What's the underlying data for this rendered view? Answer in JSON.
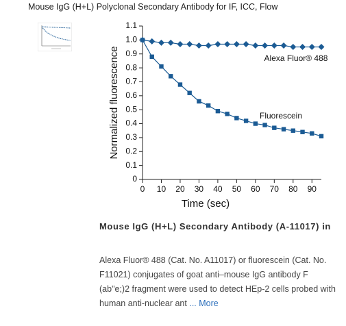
{
  "header": {
    "title": "Mouse IgG (H+L) Polyclonal Secondary Antibody for IF, ICC, Flow"
  },
  "chart_data": {
    "type": "line",
    "x_label": "Time (sec)",
    "y_label": "Normalized fluorescence",
    "x": [
      0,
      5,
      10,
      15,
      20,
      25,
      30,
      35,
      40,
      45,
      50,
      55,
      60,
      65,
      70,
      75,
      80,
      85,
      90,
      95
    ],
    "series": [
      {
        "name": "Alexa Fluor® 488",
        "color": "#1b5b94",
        "marker": "diamond",
        "values": [
          1.0,
          0.99,
          0.98,
          0.98,
          0.97,
          0.97,
          0.96,
          0.96,
          0.97,
          0.97,
          0.97,
          0.97,
          0.96,
          0.96,
          0.96,
          0.96,
          0.95,
          0.95,
          0.95,
          0.95
        ]
      },
      {
        "name": "Fluorescein",
        "color": "#1b5b94",
        "marker": "square",
        "values": [
          1.0,
          0.88,
          0.81,
          0.74,
          0.68,
          0.62,
          0.56,
          0.53,
          0.49,
          0.47,
          0.44,
          0.42,
          0.4,
          0.39,
          0.37,
          0.36,
          0.35,
          0.34,
          0.33,
          0.31
        ]
      }
    ],
    "xlim": [
      0,
      95
    ],
    "xticks": [
      0,
      10,
      20,
      30,
      40,
      50,
      60,
      70,
      80,
      90
    ],
    "ylim": [
      0,
      1.1
    ],
    "yticks": [
      0,
      0.1,
      0.2,
      0.3,
      0.4,
      0.5,
      0.6,
      0.7,
      0.8,
      0.9,
      {
        "value": 1,
        "label": "1.0"
      },
      1.1
    ]
  },
  "caption": {
    "title": "Mouse IgG (H+L) Secondary Antibody (A-11017) in",
    "text": "Alexa Fluor® 488 (Cat. No. A11017) or fluorescein (Cat. No. F11021) conjugates of goat anti–mouse IgG antibody F (ab\"e;)2 fragment were used to detect HEp-2 cells probed with human anti-nuclear ant",
    "link": "... More"
  }
}
